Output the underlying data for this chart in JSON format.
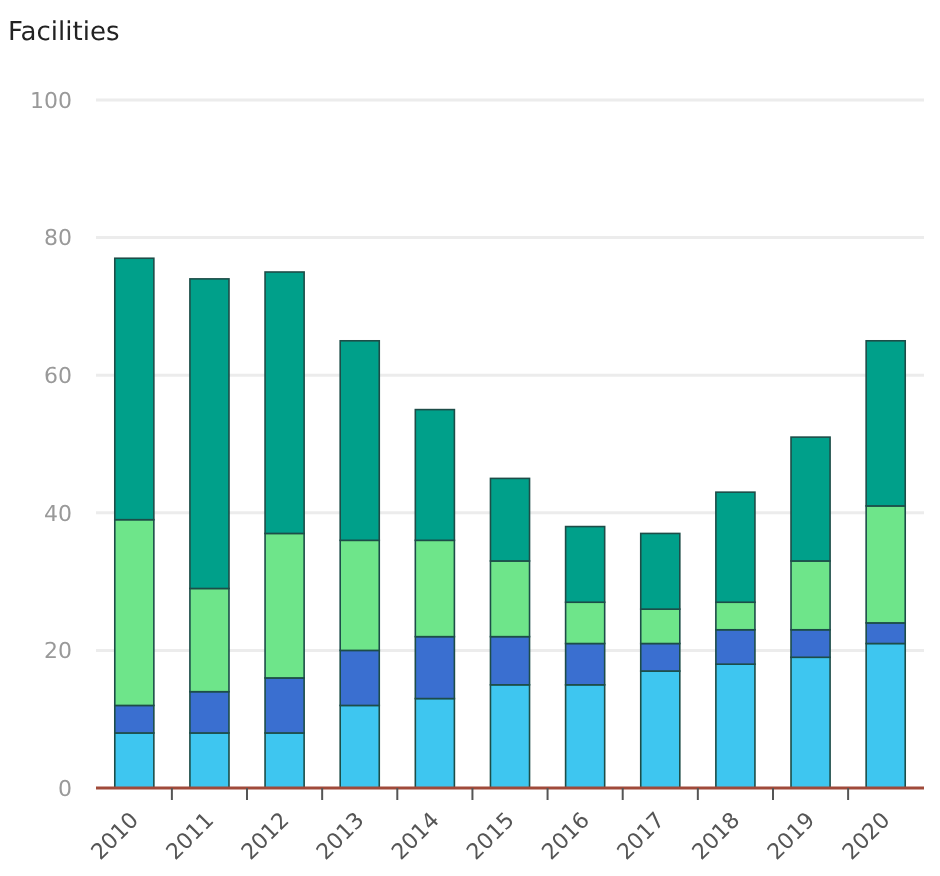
{
  "chart_data": {
    "type": "bar",
    "ylabel": "Facilities",
    "stacked": true,
    "categories": [
      "2010",
      "2011",
      "2012",
      "2013",
      "2014",
      "2015",
      "2016",
      "2017",
      "2018",
      "2019",
      "2020"
    ],
    "series": [
      {
        "color": "#3ec6f0",
        "values": [
          8,
          8,
          8,
          12,
          13,
          15,
          15,
          17,
          18,
          19,
          21
        ]
      },
      {
        "color": "#3a6fd0",
        "values": [
          4,
          6,
          8,
          8,
          9,
          7,
          6,
          4,
          5,
          4,
          3
        ]
      },
      {
        "color": "#6ee58a",
        "values": [
          27,
          15,
          21,
          16,
          14,
          11,
          6,
          5,
          4,
          10,
          17
        ]
      },
      {
        "color": "#00a08a",
        "values": [
          38,
          45,
          38,
          29,
          19,
          12,
          11,
          11,
          16,
          18,
          24
        ]
      }
    ],
    "ylim": [
      0,
      100
    ],
    "yticks": [
      0,
      20,
      40,
      60,
      80,
      100
    ],
    "grid": "y"
  }
}
